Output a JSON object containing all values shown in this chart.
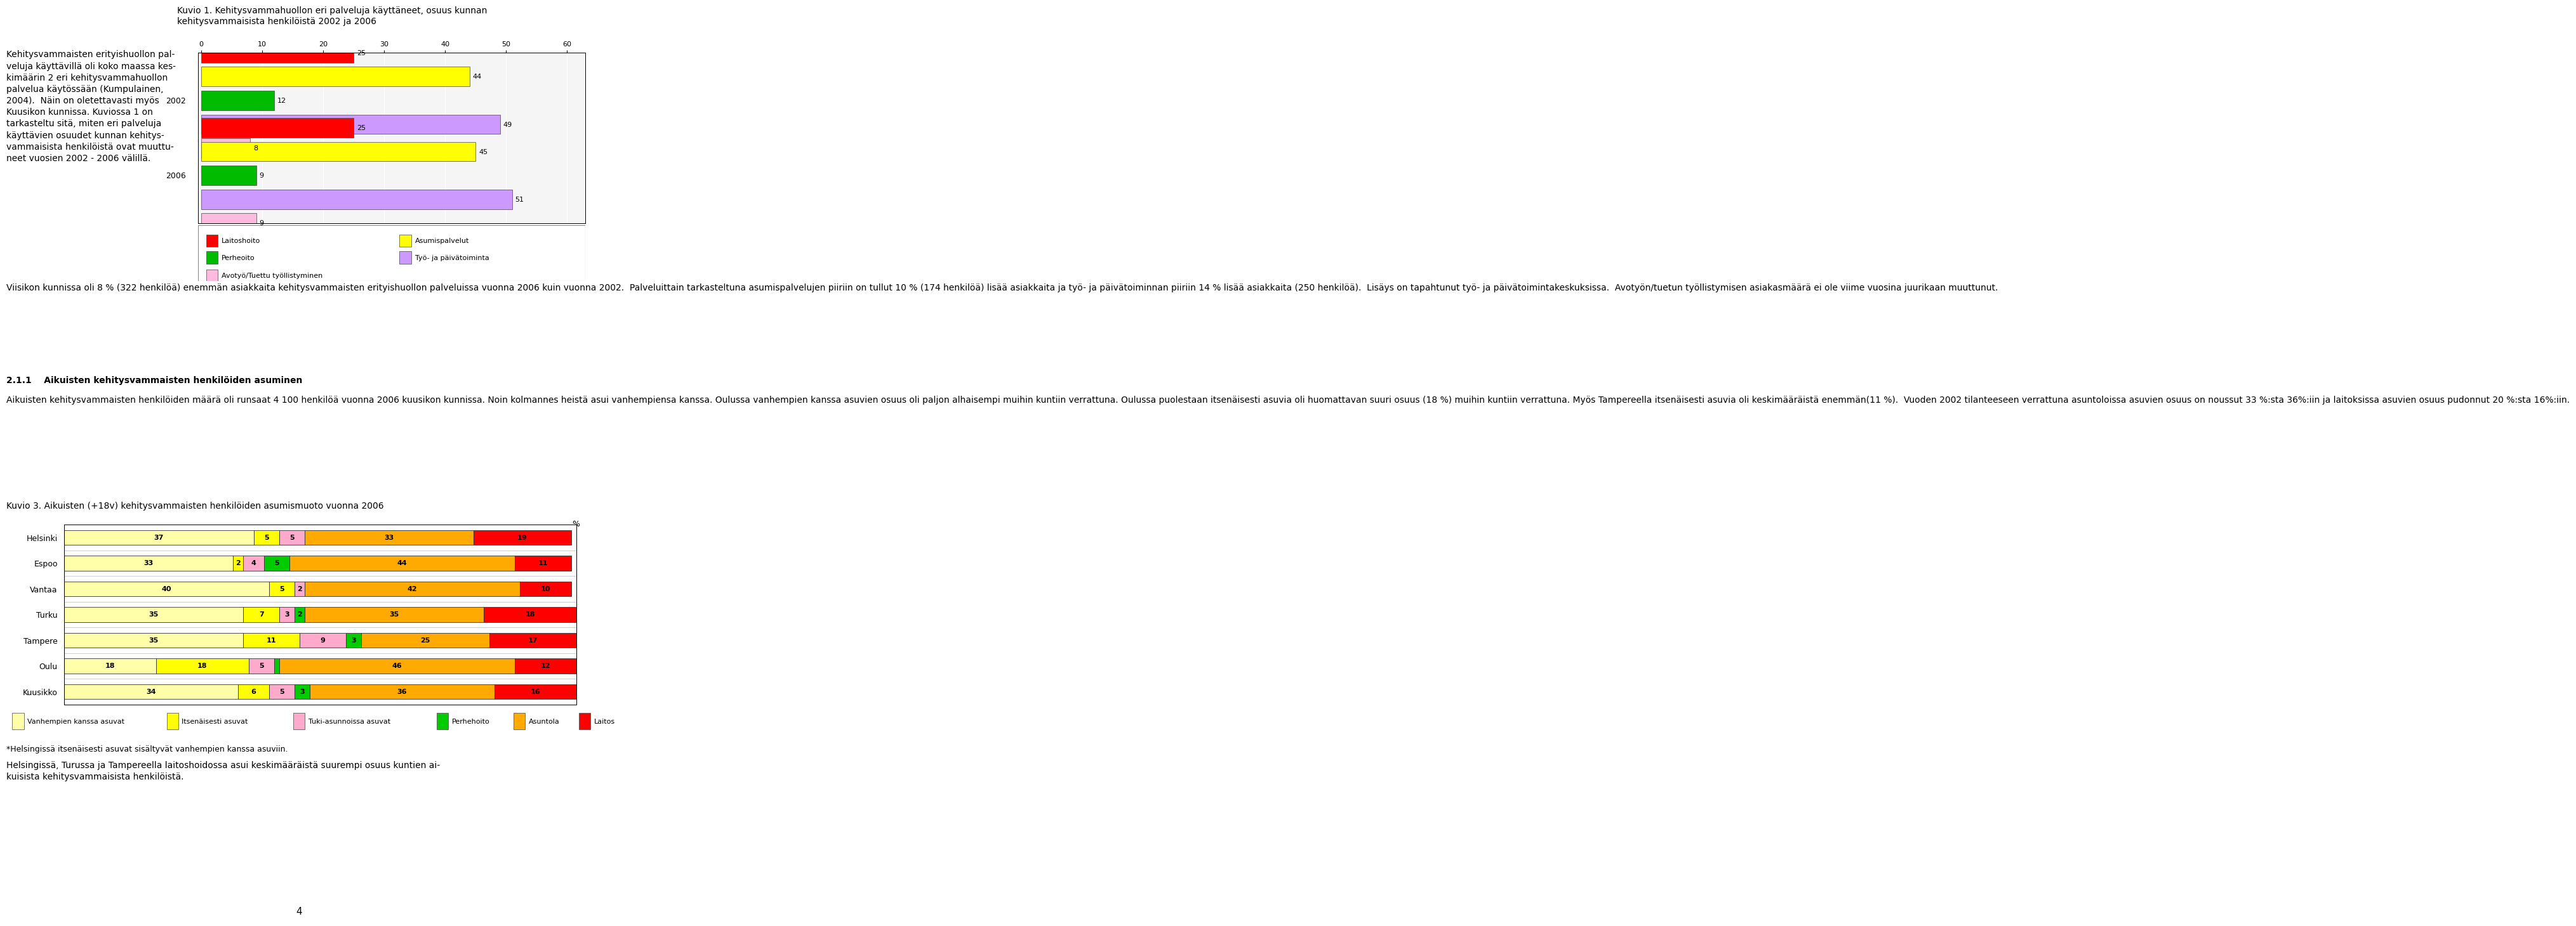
{
  "page_bg": "#ffffff",
  "fig1": {
    "title": "Kuvio 1. Kehitysvammahuollon eri palveluja käyttäneet, osuus kunnan\nkehitysvammaisista henkilöistä 2002 ja 2006",
    "title_fontsize": 10,
    "years": [
      "2002",
      "2006"
    ],
    "categories": [
      "Laitoshoito",
      "Asumispalvelut",
      "Perheoito",
      "Työ- ja päivätoiminta",
      "Avotyö/Tuettu työllistyminen"
    ],
    "colors": [
      "#ff0000",
      "#ffff00",
      "#00bb00",
      "#cc99ff",
      "#ffbbdd"
    ],
    "data": {
      "2002": [
        25,
        44,
        12,
        49,
        8
      ],
      "2006": [
        25,
        45,
        9,
        51,
        9
      ]
    },
    "xlim": [
      0,
      60
    ],
    "xticks": [
      0,
      10,
      20,
      30,
      40,
      50,
      60
    ],
    "legend_items": [
      {
        "label": "Laitoshoito",
        "color": "#ff0000"
      },
      {
        "label": "Asumispalvelut",
        "color": "#ffff00"
      },
      {
        "label": "Perheoito",
        "color": "#00bb00"
      },
      {
        "label": "Työ- ja päivätoiminta",
        "color": "#cc99ff"
      },
      {
        "label": "Avotyö/Tuettu työllistyminen",
        "color": "#ffbbdd"
      }
    ]
  },
  "left_text": "Kehitysvammaisten erityishuollon pal-\nveluja käyttävillä oli koko maassa kes-\nkimäärin 2 eri kehitysvammahuollon\npalvelua käytössään (Kumpulainen,\n2004).  Näin on oletettavasti myös\nKuusikon kunnissa. Kuviossa 1 on\ntarkasteltu sitä, miten eri palveluja\nkäyttävien osuudet kunnan kehitys-\nvammaisista henkilöistä ovat muuttu-\nneet vuosien 2002 - 2006 välillä.",
  "para1": "Viisikon kunnissa oli 8 % (322 henkilöä) enemmän asiakkaita kehitysvammaisten erityishuollon palveluissa vuonna 2006 kuin vuonna 2002.  Palveluittain tarkasteltuna asumispalvelujen piiriin on tullut 10 % (174 henkilöä) lisää asiakkaita ja työ- ja päivätoiminnan piiriin 14 % lisää asiakkaita (250 henkilöä).  Lisäys on tapahtunut työ- ja päivätoimintakeskuksissa.  Avotyön/tuetun työllistymisen asiakasmäärä ei ole viime vuosina juurikaan muuttunut.",
  "section_title": "2.1.1    Aikuisten kehitysvammaisten henkilöiden asuminen",
  "para2": "Aikuisten kehitysvammaisten henkilöiden määrä oli runsaat 4 100 henkilöä vuonna 2006 kuusikon kunnissa. Noin kolmannes heistä asui vanhempiensa kanssa. Oulussa vanhempien kanssa asuvien osuus oli paljon alhaisempi muihin kuntiin verrattuna. Oulussa puolestaan itsenäisesti asuvia oli huomattavan suuri osuus (18 %) muihin kuntiin verrattuna. Myös Tampereella itsenäisesti asuvia oli keskimääräistä enemmän(11 %).  Vuoden 2002 tilanteeseen verrattuna asuntoloissa asuvien osuus on noussut 33 %:sta 36%:iin ja laitoksissa asuvien osuus pudonnut 20 %:sta 16%:iin.",
  "fig2": {
    "title": "Kuvio 3. Aikuisten (+18v) kehitysvammaisten henkilöiden asumismuoto vuonna 2006",
    "title_fontsize": 10,
    "cities": [
      "Helsinki",
      "Espoo",
      "Vantaa",
      "Turku",
      "Tampere",
      "Oulu",
      "Kuusikko"
    ],
    "categories": [
      "Vanhempien kanssa asuvat",
      "Itsenäisesti asuvat",
      "Tuki-asunnoissa asuvat",
      "Perhehoito",
      "Asuntola",
      "Laitos"
    ],
    "colors": [
      "#ffffaa",
      "#ffff00",
      "#ffaacc",
      "#00cc00",
      "#ffaa00",
      "#ff0000"
    ],
    "data": [
      [
        37,
        5,
        5,
        0,
        33,
        19
      ],
      [
        33,
        2,
        4,
        5,
        44,
        11
      ],
      [
        40,
        5,
        2,
        0,
        42,
        10
      ],
      [
        35,
        7,
        3,
        2,
        35,
        18
      ],
      [
        35,
        11,
        9,
        3,
        25,
        17
      ],
      [
        18,
        18,
        5,
        1,
        46,
        12
      ],
      [
        34,
        6,
        5,
        3,
        36,
        16
      ]
    ]
  },
  "footnote": "*Helsingissä itsenäisesti asuvat sisältyvät vanhempien kanssa asuviin.",
  "footnote2": "Helsingissä, Turussa ja Tampereella laitoshoidossa asui keskimääräistä suurempi osuus kuntien ai-\nkuisista kehitysvammaisista henkilöistä.",
  "page_num": "4"
}
